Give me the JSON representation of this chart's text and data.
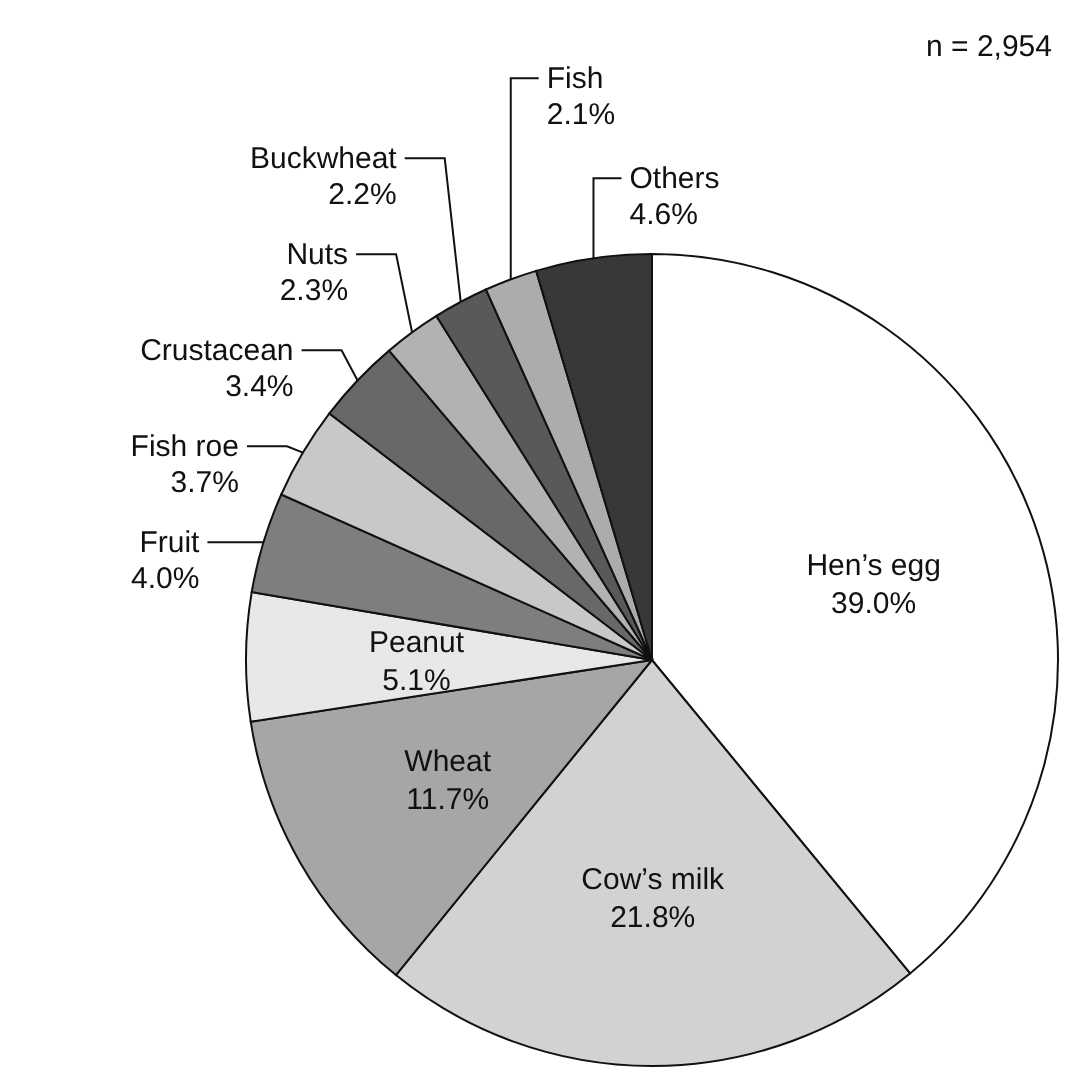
{
  "chart_data": {
    "type": "pie",
    "categories": [
      "Hen’s egg",
      "Cow’s milk",
      "Wheat",
      "Peanut",
      "Fruit",
      "Fish roe",
      "Crustacean",
      "Nuts",
      "Buckwheat",
      "Fish",
      "Others"
    ],
    "values": [
      39.0,
      21.8,
      11.7,
      5.1,
      4.0,
      3.7,
      3.4,
      2.3,
      2.2,
      2.1,
      4.6
    ],
    "value_labels": [
      "39.0%",
      "21.8%",
      "11.7%",
      "5.1%",
      "4.0%",
      "3.7%",
      "3.4%",
      "2.3%",
      "2.2%",
      "2.1%",
      "4.6%"
    ],
    "colors": [
      "#ffffff",
      "#d2d2d2",
      "#a6a6a6",
      "#e8e8e8",
      "#7e7e7e",
      "#c8c8c8",
      "#686868",
      "#b2b2b2",
      "#595959",
      "#acacac",
      "#383838"
    ],
    "annotations": [
      "n = 2,954"
    ],
    "legend": false
  }
}
